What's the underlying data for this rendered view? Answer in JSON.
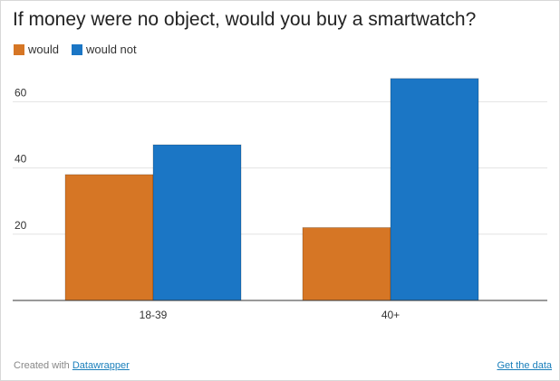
{
  "chart_data": {
    "type": "bar",
    "title": "If money were no object, would you buy a smartwatch?",
    "categories": [
      "18-39",
      "40+"
    ],
    "series": [
      {
        "name": "would",
        "values": [
          38,
          22
        ],
        "color": "#d67625"
      },
      {
        "name": "would not",
        "values": [
          47,
          67
        ],
        "color": "#1b76c5"
      }
    ],
    "yticks": [
      "20",
      "40",
      "60"
    ],
    "ylim": [
      0,
      70
    ],
    "grid": true,
    "legend_position": "top-left",
    "xlabel": "",
    "ylabel": ""
  },
  "footer": {
    "created_with": "Created with",
    "tool_link": "Datawrapper",
    "get_data_link": "Get the data"
  }
}
